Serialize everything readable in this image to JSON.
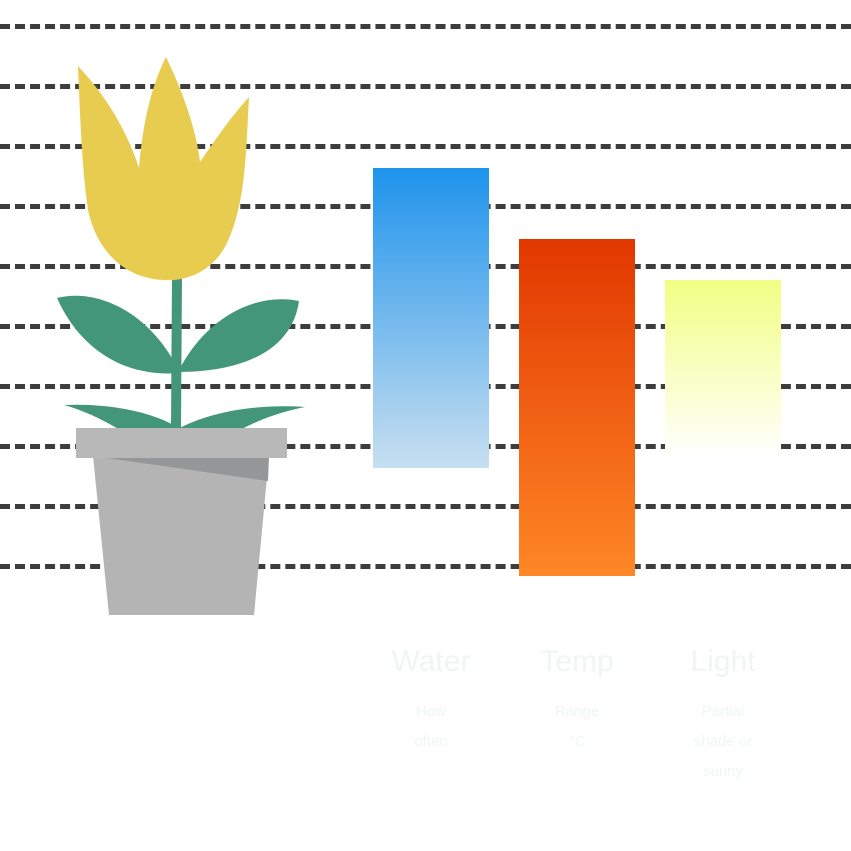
{
  "illustration": {
    "plant": {
      "flower_color": "#e8cc50",
      "leaf_color": "#43967a",
      "pot_color": "#b4b4b4",
      "pot_rim_color": "#b8b8b8",
      "pot_shadow_color": "#959697"
    },
    "gridline_color": "#3d3d3d"
  },
  "bars": [
    {
      "name": "Water",
      "subtitle": [
        "How",
        "often"
      ],
      "level": 0.55,
      "color_top": "#1e93ec",
      "color_bottom": "#c7dff0"
    },
    {
      "name": "Temp",
      "subtitle": [
        "Range",
        "°C"
      ],
      "level": 0.62,
      "color_top": "#e23700",
      "color_bottom": "#fe8726"
    },
    {
      "name": "Light",
      "subtitle": [
        "Partial",
        "shade or",
        "sunny"
      ],
      "level": 0.32,
      "color_top": "#f2ff83",
      "color_bottom": "#ffffff"
    }
  ]
}
